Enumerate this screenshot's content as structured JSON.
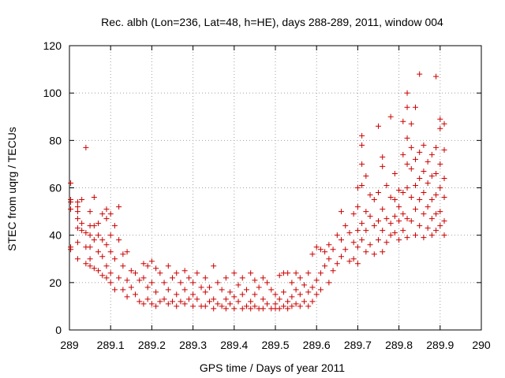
{
  "chart_data": {
    "type": "scatter",
    "title": "Rec. albh (Lon=236, Lat=48, h=HE), days 288-289, 2011, window 004",
    "xlabel": "GPS time / Days of year 2011",
    "ylabel": "STEC from uqrg / TECUs",
    "xlim": [
      289,
      290
    ],
    "ylim": [
      0,
      120
    ],
    "xticks": [
      "289",
      "289.1",
      "289.2",
      "289.3",
      "289.4",
      "289.5",
      "289.6",
      "289.7",
      "289.8",
      "289.9",
      "290"
    ],
    "yticks": [
      "0",
      "20",
      "40",
      "60",
      "80",
      "100",
      "120"
    ],
    "grid": true,
    "marker": "+",
    "color": "#cc0000",
    "series": [
      {
        "points": [
          [
            289.003,
            62
          ],
          [
            289.003,
            55
          ],
          [
            289.003,
            54
          ],
          [
            289.003,
            51
          ],
          [
            289.003,
            35
          ],
          [
            289.003,
            34
          ],
          [
            289.02,
            54
          ],
          [
            289.02,
            52
          ],
          [
            289.02,
            50
          ],
          [
            289.02,
            47
          ],
          [
            289.02,
            43
          ],
          [
            289.02,
            37
          ],
          [
            289.02,
            30
          ],
          [
            289.03,
            55
          ],
          [
            289.03,
            45
          ],
          [
            289.03,
            42
          ],
          [
            289.04,
            77
          ],
          [
            289.04,
            41
          ],
          [
            289.04,
            35
          ],
          [
            289.04,
            28
          ],
          [
            289.05,
            50
          ],
          [
            289.05,
            44
          ],
          [
            289.05,
            40
          ],
          [
            289.05,
            35
          ],
          [
            289.05,
            30
          ],
          [
            289.05,
            27
          ],
          [
            289.06,
            56
          ],
          [
            289.06,
            44
          ],
          [
            289.06,
            38
          ],
          [
            289.06,
            26
          ],
          [
            289.07,
            45
          ],
          [
            289.07,
            40
          ],
          [
            289.07,
            33
          ],
          [
            289.07,
            25
          ],
          [
            289.08,
            49
          ],
          [
            289.08,
            38
          ],
          [
            289.08,
            31
          ],
          [
            289.08,
            23
          ],
          [
            289.09,
            51
          ],
          [
            289.09,
            47
          ],
          [
            289.09,
            36
          ],
          [
            289.09,
            27
          ],
          [
            289.09,
            22
          ],
          [
            289.1,
            49
          ],
          [
            289.1,
            40
          ],
          [
            289.1,
            33
          ],
          [
            289.1,
            24
          ],
          [
            289.1,
            20
          ],
          [
            289.11,
            44
          ],
          [
            289.11,
            30
          ],
          [
            289.11,
            17
          ],
          [
            289.12,
            52
          ],
          [
            289.12,
            38
          ],
          [
            289.12,
            22
          ],
          [
            289.13,
            32
          ],
          [
            289.13,
            27
          ],
          [
            289.13,
            17
          ],
          [
            289.14,
            33
          ],
          [
            289.14,
            21
          ],
          [
            289.14,
            14
          ],
          [
            289.15,
            25
          ],
          [
            289.15,
            18
          ],
          [
            289.16,
            24
          ],
          [
            289.16,
            15
          ],
          [
            289.17,
            21
          ],
          [
            289.17,
            12
          ],
          [
            289.18,
            28
          ],
          [
            289.18,
            22
          ],
          [
            289.18,
            11
          ],
          [
            289.19,
            27
          ],
          [
            289.19,
            18
          ],
          [
            289.19,
            13
          ],
          [
            289.2,
            29
          ],
          [
            289.2,
            20
          ],
          [
            289.2,
            11
          ],
          [
            289.21,
            26
          ],
          [
            289.21,
            16
          ],
          [
            289.21,
            10
          ],
          [
            289.22,
            24
          ],
          [
            289.22,
            12
          ],
          [
            289.23,
            20
          ],
          [
            289.23,
            13
          ],
          [
            289.24,
            27
          ],
          [
            289.24,
            17
          ],
          [
            289.24,
            11
          ],
          [
            289.25,
            22
          ],
          [
            289.25,
            12
          ],
          [
            289.26,
            24
          ],
          [
            289.26,
            15
          ],
          [
            289.26,
            10
          ],
          [
            289.27,
            20
          ],
          [
            289.27,
            12
          ],
          [
            289.28,
            25
          ],
          [
            289.28,
            17
          ],
          [
            289.28,
            11
          ],
          [
            289.29,
            22
          ],
          [
            289.29,
            13
          ],
          [
            289.3,
            20
          ],
          [
            289.3,
            15
          ],
          [
            289.3,
            10
          ],
          [
            289.31,
            24
          ],
          [
            289.31,
            13
          ],
          [
            289.32,
            18
          ],
          [
            289.32,
            10
          ],
          [
            289.33,
            22
          ],
          [
            289.33,
            16
          ],
          [
            289.33,
            10
          ],
          [
            289.34,
            18
          ],
          [
            289.34,
            12
          ],
          [
            289.35,
            27
          ],
          [
            289.35,
            13
          ],
          [
            289.35,
            9
          ],
          [
            289.36,
            20
          ],
          [
            289.36,
            11
          ],
          [
            289.37,
            17
          ],
          [
            289.37,
            10
          ],
          [
            289.38,
            22
          ],
          [
            289.38,
            13
          ],
          [
            289.38,
            9
          ],
          [
            289.39,
            16
          ],
          [
            289.39,
            11
          ],
          [
            289.4,
            24
          ],
          [
            289.4,
            14
          ],
          [
            289.4,
            9
          ],
          [
            289.41,
            19
          ],
          [
            289.41,
            12
          ],
          [
            289.42,
            22
          ],
          [
            289.42,
            15
          ],
          [
            289.42,
            9
          ],
          [
            289.43,
            17
          ],
          [
            289.43,
            10
          ],
          [
            289.44,
            24
          ],
          [
            289.44,
            12
          ],
          [
            289.44,
            9
          ],
          [
            289.45,
            21
          ],
          [
            289.45,
            15
          ],
          [
            289.45,
            10
          ],
          [
            289.46,
            18
          ],
          [
            289.46,
            9
          ],
          [
            289.47,
            22
          ],
          [
            289.47,
            13
          ],
          [
            289.47,
            9
          ],
          [
            289.48,
            20
          ],
          [
            289.48,
            11
          ],
          [
            289.49,
            17
          ],
          [
            289.49,
            9
          ],
          [
            289.5,
            15
          ],
          [
            289.5,
            11
          ],
          [
            289.5,
            9
          ],
          [
            289.51,
            23
          ],
          [
            289.51,
            13
          ],
          [
            289.51,
            9
          ],
          [
            289.52,
            24
          ],
          [
            289.52,
            16
          ],
          [
            289.52,
            10
          ],
          [
            289.53,
            24
          ],
          [
            289.53,
            12
          ],
          [
            289.53,
            9
          ],
          [
            289.54,
            20
          ],
          [
            289.54,
            14
          ],
          [
            289.54,
            10
          ],
          [
            289.55,
            24
          ],
          [
            289.55,
            17
          ],
          [
            289.55,
            11
          ],
          [
            289.56,
            22
          ],
          [
            289.56,
            15
          ],
          [
            289.56,
            10
          ],
          [
            289.57,
            19
          ],
          [
            289.57,
            12
          ],
          [
            289.58,
            24
          ],
          [
            289.58,
            16
          ],
          [
            289.58,
            10
          ],
          [
            289.59,
            32
          ],
          [
            289.59,
            18
          ],
          [
            289.59,
            12
          ],
          [
            289.6,
            35
          ],
          [
            289.6,
            21
          ],
          [
            289.6,
            15
          ],
          [
            289.61,
            34
          ],
          [
            289.61,
            24
          ],
          [
            289.61,
            17
          ],
          [
            289.62,
            33
          ],
          [
            289.62,
            27
          ],
          [
            289.63,
            36
          ],
          [
            289.63,
            30
          ],
          [
            289.63,
            20
          ],
          [
            289.64,
            34
          ],
          [
            289.64,
            25
          ],
          [
            289.65,
            40
          ],
          [
            289.65,
            28
          ],
          [
            289.66,
            50
          ],
          [
            289.66,
            38
          ],
          [
            289.66,
            31
          ],
          [
            289.67,
            44
          ],
          [
            289.67,
            34
          ],
          [
            289.68,
            41
          ],
          [
            289.68,
            29
          ],
          [
            289.69,
            49
          ],
          [
            289.69,
            37
          ],
          [
            289.69,
            30
          ],
          [
            289.7,
            60
          ],
          [
            289.7,
            52
          ],
          [
            289.7,
            42
          ],
          [
            289.7,
            35
          ],
          [
            289.7,
            28
          ],
          [
            289.71,
            82
          ],
          [
            289.71,
            78
          ],
          [
            289.71,
            70
          ],
          [
            289.71,
            61
          ],
          [
            289.71,
            45
          ],
          [
            289.71,
            38
          ],
          [
            289.72,
            65
          ],
          [
            289.72,
            50
          ],
          [
            289.72,
            42
          ],
          [
            289.72,
            33
          ],
          [
            289.73,
            57
          ],
          [
            289.73,
            48
          ],
          [
            289.73,
            36
          ],
          [
            289.74,
            55
          ],
          [
            289.74,
            44
          ],
          [
            289.74,
            32
          ],
          [
            289.75,
            86
          ],
          [
            289.75,
            58
          ],
          [
            289.75,
            46
          ],
          [
            289.75,
            38
          ],
          [
            289.76,
            73
          ],
          [
            289.76,
            69
          ],
          [
            289.76,
            51
          ],
          [
            289.76,
            42
          ],
          [
            289.76,
            33
          ],
          [
            289.77,
            61
          ],
          [
            289.77,
            47
          ],
          [
            289.77,
            37
          ],
          [
            289.78,
            90
          ],
          [
            289.78,
            56
          ],
          [
            289.78,
            45
          ],
          [
            289.78,
            40
          ],
          [
            289.79,
            66
          ],
          [
            289.79,
            55
          ],
          [
            289.79,
            48
          ],
          [
            289.79,
            41
          ],
          [
            289.8,
            59
          ],
          [
            289.8,
            52
          ],
          [
            289.8,
            46
          ],
          [
            289.8,
            38
          ],
          [
            289.81,
            88
          ],
          [
            289.81,
            74
          ],
          [
            289.81,
            58
          ],
          [
            289.81,
            49
          ],
          [
            289.81,
            42
          ],
          [
            289.82,
            100
          ],
          [
            289.82,
            94
          ],
          [
            289.82,
            81
          ],
          [
            289.82,
            70
          ],
          [
            289.82,
            60
          ],
          [
            289.82,
            47
          ],
          [
            289.82,
            39
          ],
          [
            289.83,
            87
          ],
          [
            289.83,
            77
          ],
          [
            289.83,
            68
          ],
          [
            289.83,
            56
          ],
          [
            289.83,
            46
          ],
          [
            289.84,
            94
          ],
          [
            289.84,
            72
          ],
          [
            289.84,
            61
          ],
          [
            289.84,
            51
          ],
          [
            289.84,
            40
          ],
          [
            289.85,
            108
          ],
          [
            289.85,
            75
          ],
          [
            289.85,
            64
          ],
          [
            289.85,
            55
          ],
          [
            289.85,
            44
          ],
          [
            289.86,
            78
          ],
          [
            289.86,
            67
          ],
          [
            289.86,
            58
          ],
          [
            289.86,
            49
          ],
          [
            289.86,
            39
          ],
          [
            289.87,
            71
          ],
          [
            289.87,
            62
          ],
          [
            289.87,
            52
          ],
          [
            289.87,
            43
          ],
          [
            289.88,
            74
          ],
          [
            289.88,
            65
          ],
          [
            289.88,
            55
          ],
          [
            289.88,
            47
          ],
          [
            289.88,
            40
          ],
          [
            289.89,
            107
          ],
          [
            289.89,
            77
          ],
          [
            289.89,
            66
          ],
          [
            289.89,
            57
          ],
          [
            289.89,
            49
          ],
          [
            289.89,
            42
          ],
          [
            289.9,
            89
          ],
          [
            289.9,
            85
          ],
          [
            289.9,
            70
          ],
          [
            289.9,
            60
          ],
          [
            289.9,
            50
          ],
          [
            289.9,
            44
          ],
          [
            289.91,
            87
          ],
          [
            289.91,
            76
          ],
          [
            289.91,
            64
          ],
          [
            289.91,
            56
          ],
          [
            289.91,
            46
          ],
          [
            289.91,
            40
          ]
        ]
      }
    ]
  }
}
